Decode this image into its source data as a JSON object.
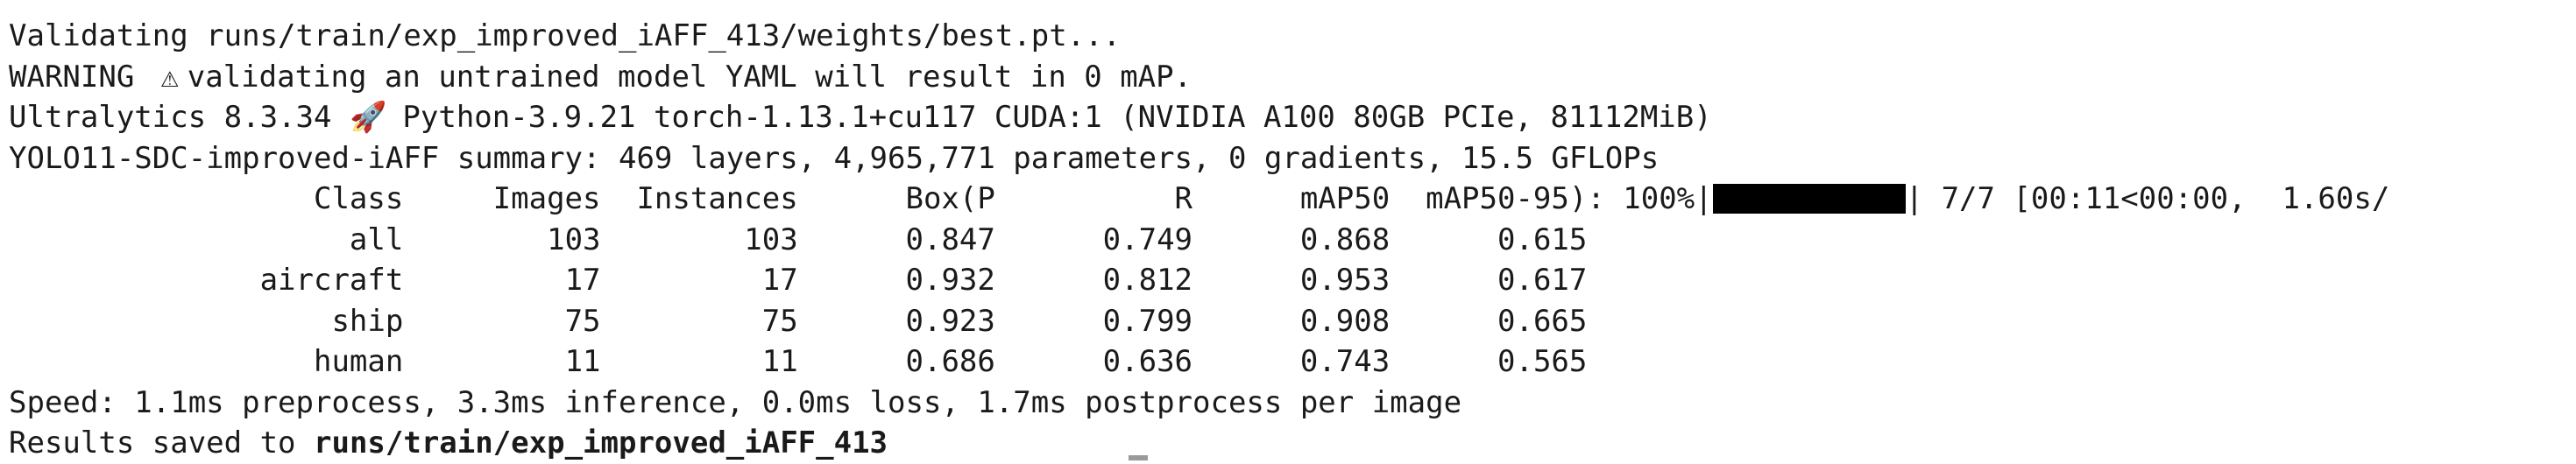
{
  "terminal": {
    "line1": "Validating runs/train/exp_improved_iAFF_413/weights/best.pt...",
    "warning_prefix": "WARNING ",
    "warning_icon": "⚠",
    "warning_text": "validating an untrained model YAML will result in 0 mAP.",
    "env_prefix": "Ultralytics 8.3.34 ",
    "rocket_icon": "🚀",
    "env_text": " Python-3.9.21 torch-1.13.1+cu117 CUDA:1 (NVIDIA A100 80GB PCIe, 81112MiB)",
    "summary": "YOLO11-SDC-improved-iAFF summary: 469 layers, 4,965,771 parameters, 0 gradients, 15.5 GFLOPs",
    "header_cols": "                 Class     Images  Instances      Box(P          R      mAP50  mAP50-95): 100%|",
    "progress_fraction": 1.0,
    "header_tail": "| 7/7 [00:11<00:00,  1.60s/",
    "rows": [
      {
        "class": "all",
        "images": "103",
        "instances": "103",
        "p": "0.847",
        "r": "0.749",
        "map50": "0.868",
        "map50_95": "0.615"
      },
      {
        "class": "aircraft",
        "images": "17",
        "instances": "17",
        "p": "0.932",
        "r": "0.812",
        "map50": "0.953",
        "map50_95": "0.617"
      },
      {
        "class": "ship",
        "images": "75",
        "instances": "75",
        "p": "0.923",
        "r": "0.799",
        "map50": "0.908",
        "map50_95": "0.665"
      },
      {
        "class": "human",
        "images": "11",
        "instances": "11",
        "p": "0.686",
        "r": "0.636",
        "map50": "0.743",
        "map50_95": "0.565"
      }
    ],
    "speed": "Speed: 1.1ms preprocess, 3.3ms inference, 0.0ms loss, 1.7ms postprocess per image",
    "results_prefix": "Results saved to ",
    "results_path": "runs/train/exp_improved_iAFF_413"
  }
}
